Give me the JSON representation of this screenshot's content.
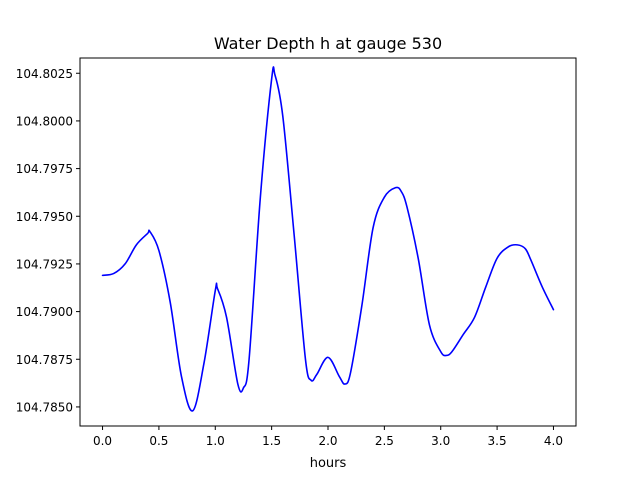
{
  "chart_data": {
    "type": "line",
    "title": "Water Depth h at gauge 530",
    "xlabel": "hours",
    "ylabel": "",
    "xlim": [
      -0.2,
      4.2
    ],
    "ylim": [
      104.784,
      104.8033
    ],
    "xticks": [
      0.0,
      0.5,
      1.0,
      1.5,
      2.0,
      2.5,
      3.0,
      3.5,
      4.0
    ],
    "xtick_labels": [
      "0.0",
      "0.5",
      "1.0",
      "1.5",
      "2.0",
      "2.5",
      "3.0",
      "3.5",
      "4.0"
    ],
    "yticks": [
      104.785,
      104.7875,
      104.79,
      104.7925,
      104.795,
      104.7975,
      104.8,
      104.8025
    ],
    "ytick_labels": [
      "104.7850",
      "104.7875",
      "104.7900",
      "104.7925",
      "104.7950",
      "104.7975",
      "104.8000",
      "104.8025"
    ],
    "grid": false,
    "legend": false,
    "series": [
      {
        "color": "#0000ff",
        "x": [
          0.0,
          0.1,
          0.2,
          0.3,
          0.4,
          0.42,
          0.5,
          0.6,
          0.7,
          0.8,
          0.9,
          1.0,
          1.02,
          1.1,
          1.2,
          1.25,
          1.3,
          1.4,
          1.5,
          1.53,
          1.6,
          1.7,
          1.8,
          1.85,
          1.9,
          2.0,
          2.1,
          2.15,
          2.2,
          2.3,
          2.4,
          2.5,
          2.6,
          2.65,
          2.7,
          2.8,
          2.9,
          3.0,
          3.05,
          3.1,
          3.2,
          3.3,
          3.4,
          3.5,
          3.6,
          3.68,
          3.75,
          3.8,
          3.9,
          4.0
        ],
        "y": [
          104.7919,
          104.792,
          104.7925,
          104.7935,
          104.7941,
          104.7942,
          104.7932,
          104.7905,
          104.7866,
          104.7848,
          104.7873,
          104.7911,
          104.7912,
          104.7897,
          104.7862,
          104.786,
          104.7875,
          104.796,
          104.8022,
          104.8024,
          104.8002,
          104.794,
          104.7875,
          104.7864,
          104.7867,
          104.7876,
          104.7866,
          104.7862,
          104.7868,
          104.7903,
          104.7944,
          104.796,
          104.7965,
          104.7963,
          104.7955,
          104.7928,
          104.7893,
          104.7879,
          104.7877,
          104.7879,
          104.7888,
          104.7897,
          104.7913,
          104.7928,
          104.7934,
          104.7935,
          104.7933,
          104.7927,
          104.7913,
          104.7901
        ]
      }
    ]
  }
}
